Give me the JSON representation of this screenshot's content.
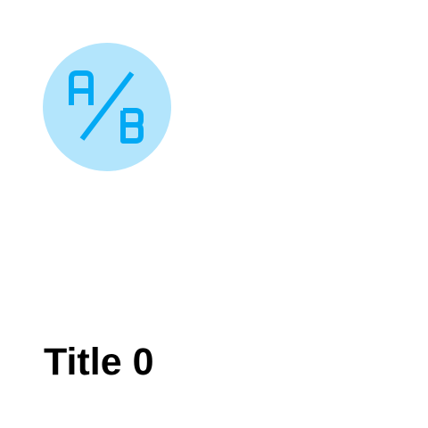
{
  "card": {
    "icon": "ab-test-icon",
    "icon_background": "#b3e5fc",
    "icon_color": "#03a9f4",
    "title": "Title 0"
  }
}
